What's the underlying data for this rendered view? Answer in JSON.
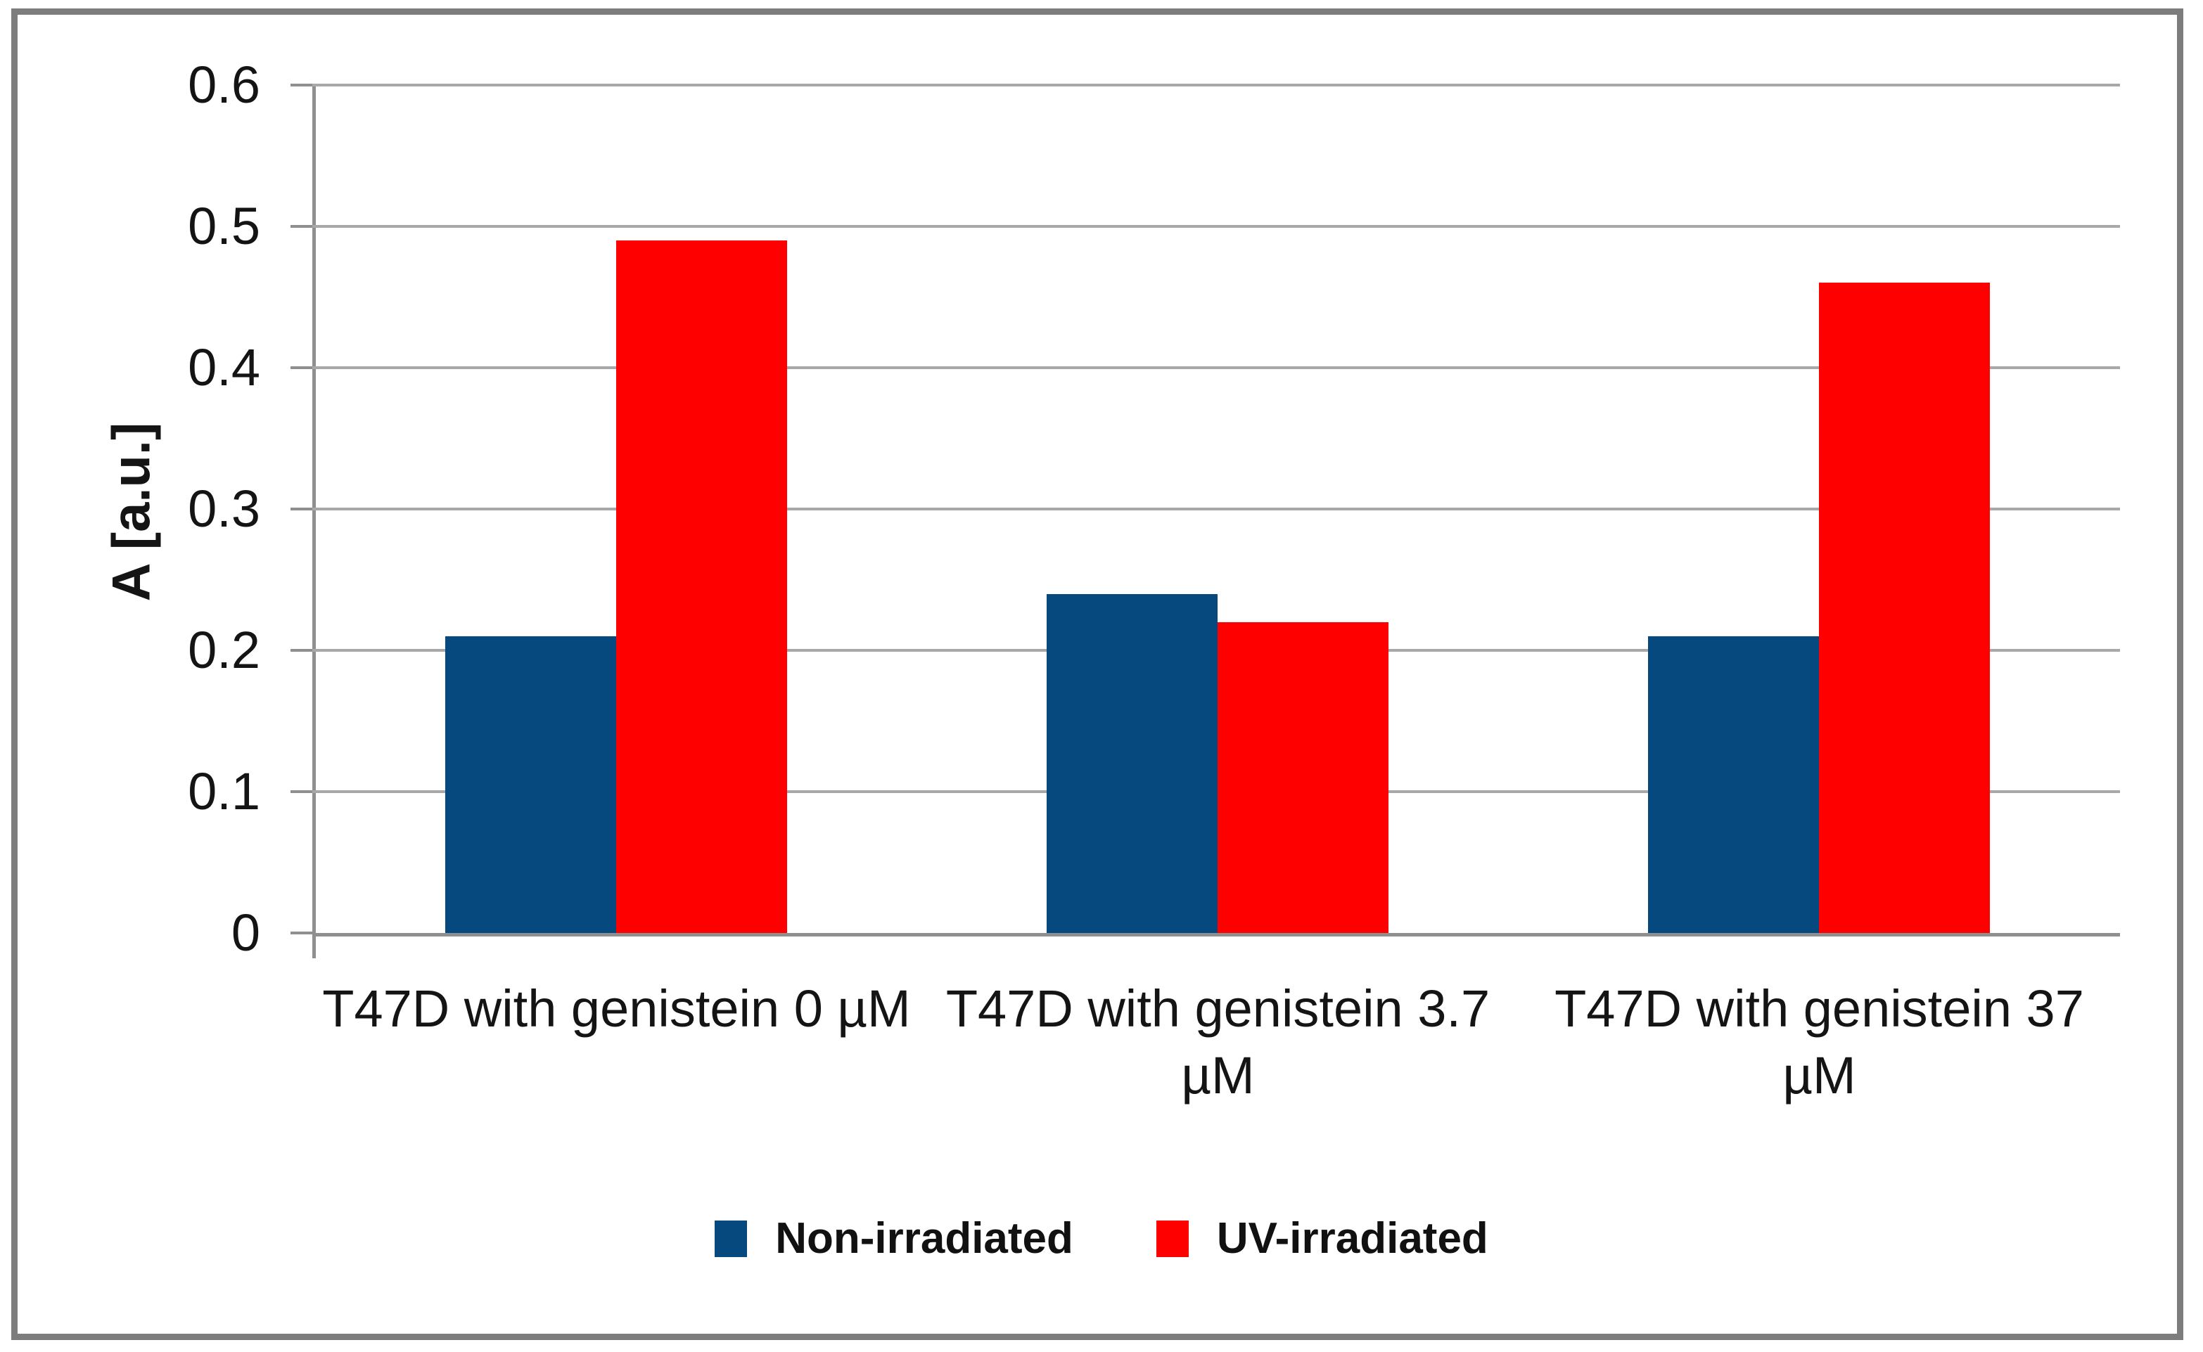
{
  "figure": {
    "background_color": "#ffffff",
    "border_color": "#7d7d7d",
    "gridline_color": "#a8a8a8",
    "axis_line_color": "#8f8f8f",
    "text_color": "#141414"
  },
  "chart_data": {
    "type": "bar",
    "title": "",
    "xlabel": "",
    "ylabel": "A [a.u.]",
    "ylim": [
      0,
      0.6
    ],
    "ytick_interval": 0.1,
    "yticks": [
      "0.6",
      "0.5",
      "0.4",
      "0.3",
      "0.2",
      "0.1",
      "0"
    ],
    "grid": true,
    "legend_position": "bottom-center",
    "categories": [
      "T47D with genistein 0 µM",
      "T47D with genistein 3.7 µM",
      "T47D with genistein 37 µM"
    ],
    "series": [
      {
        "name": "Non-irradiated",
        "color": "#05497e",
        "values": [
          0.21,
          0.24,
          0.21
        ]
      },
      {
        "name": "UV-irradiated",
        "color": "#fe0000",
        "values": [
          0.49,
          0.22,
          0.46
        ]
      }
    ]
  }
}
